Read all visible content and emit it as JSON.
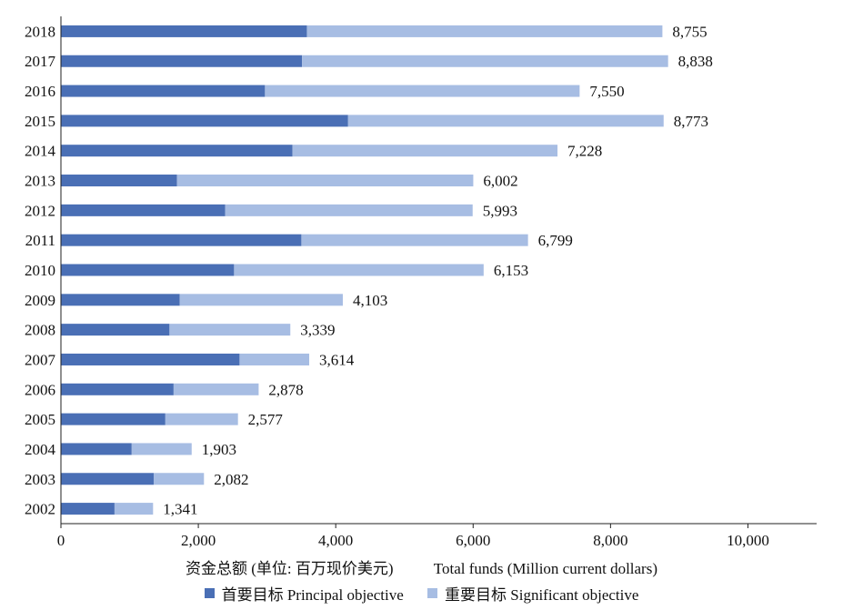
{
  "chart_data": {
    "type": "bar",
    "orientation": "horizontal",
    "stacked": true,
    "categories": [
      "2018",
      "2017",
      "2016",
      "2015",
      "2014",
      "2013",
      "2012",
      "2011",
      "2010",
      "2009",
      "2008",
      "2007",
      "2006",
      "2005",
      "2004",
      "2003",
      "2002"
    ],
    "series": [
      {
        "name": "首要目标 Principal objective",
        "color": "#4a6fb5",
        "values": [
          3580,
          3510,
          2970,
          4180,
          3370,
          1690,
          2390,
          3500,
          2520,
          1730,
          1580,
          2600,
          1640,
          1520,
          1030,
          1350,
          780
        ]
      },
      {
        "name": "重要目标 Significant objective",
        "color": "#a7bde3",
        "values": [
          5175,
          5328,
          4580,
          4593,
          3858,
          4312,
          3603,
          3299,
          3633,
          2373,
          1759,
          1014,
          1238,
          1057,
          873,
          732,
          561
        ]
      }
    ],
    "totals": [
      8755,
      8838,
      7550,
      8773,
      7228,
      6002,
      5993,
      6799,
      6153,
      4103,
      3339,
      3614,
      2878,
      2577,
      1903,
      2082,
      1341
    ],
    "total_labels": [
      "8,755",
      "8,838",
      "7,550",
      "8,773",
      "7,228",
      "6,002",
      "5,993",
      "6,799",
      "6,153",
      "4,103",
      "3,339",
      "3,614",
      "2,878",
      "2,577",
      "1,903",
      "2,082",
      "1,341"
    ],
    "xticks": [
      0,
      2000,
      4000,
      6000,
      8000,
      10000
    ],
    "xtick_labels": [
      "0",
      "2,000",
      "4,000",
      "6,000",
      "8,000",
      "10,000"
    ],
    "xlim": [
      0,
      11000
    ],
    "xlabel_zh": "资金总额 (单位: 百万现价美元)",
    "xlabel_en": "Total funds (Million current dollars)",
    "legend_position": "bottom",
    "grid": false
  }
}
